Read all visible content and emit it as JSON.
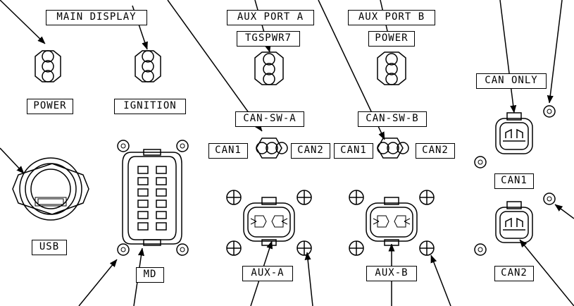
{
  "labels": {
    "main_display": "MAIN DISPLAY",
    "aux_port_a": "AUX PORT A",
    "aux_port_b": "AUX PORT B",
    "tgspwr7": "TGSPWR7",
    "power_b": "POWER",
    "power_main": "POWER",
    "ignition": "IGNITION",
    "can_only": "CAN ONLY",
    "can_sw_a": "CAN-SW-A",
    "can_sw_b": "CAN-SW-B",
    "can1_a": "CAN1",
    "can2_a": "CAN2",
    "can1_b": "CAN1",
    "can2_b": "CAN2",
    "can1_conn": "CAN1",
    "can2_conn": "CAN2",
    "usb": "USB",
    "md": "MD",
    "aux_a": "AUX-A",
    "aux_b": "AUX-B"
  }
}
